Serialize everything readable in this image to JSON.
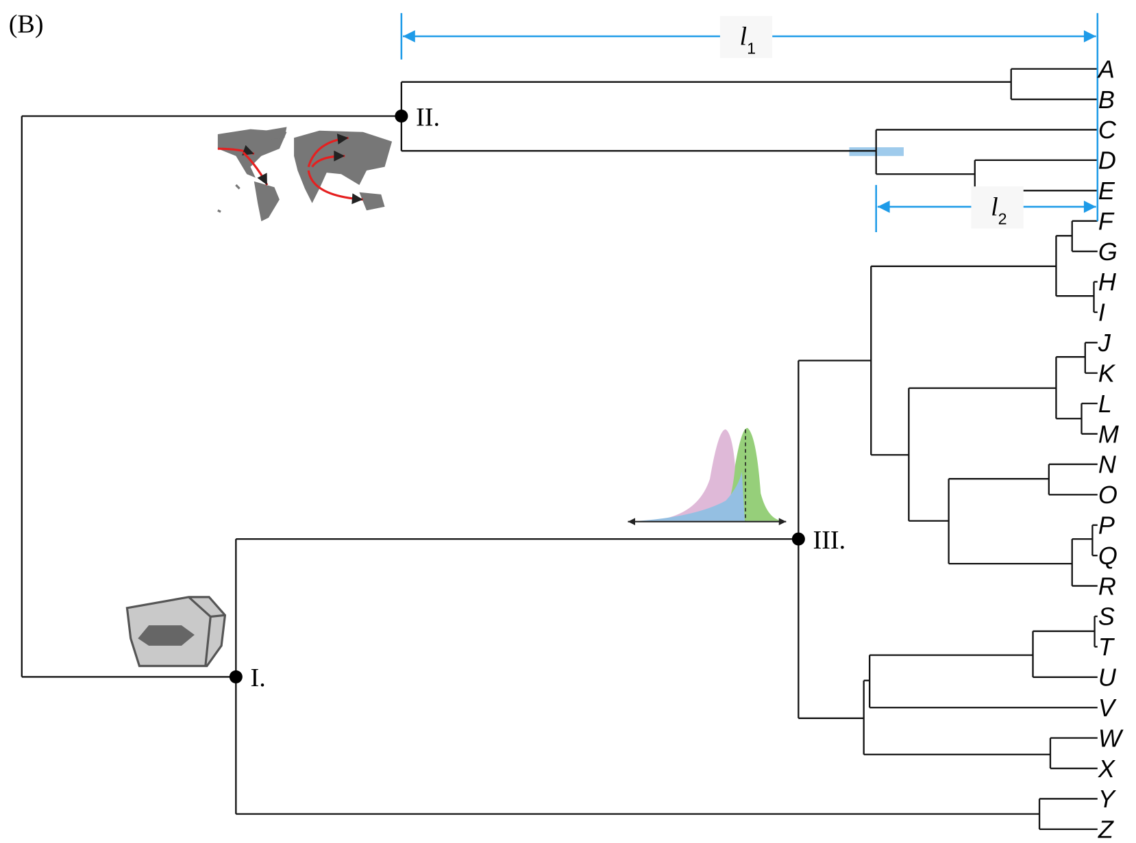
{
  "panel_label": "(B)",
  "measures": [
    {
      "symbol": "l",
      "subscript": "1"
    },
    {
      "symbol": "l",
      "subscript": "2"
    }
  ],
  "nodes": [
    {
      "label": "I."
    },
    {
      "label": "II."
    },
    {
      "label": "III."
    }
  ],
  "tips": [
    "A",
    "B",
    "C",
    "D",
    "E",
    "F",
    "G",
    "H",
    "I",
    "J",
    "K",
    "L",
    "M",
    "N",
    "O",
    "P",
    "Q",
    "R",
    "S",
    "T",
    "U",
    "V",
    "W",
    "X",
    "Y",
    "Z"
  ]
}
